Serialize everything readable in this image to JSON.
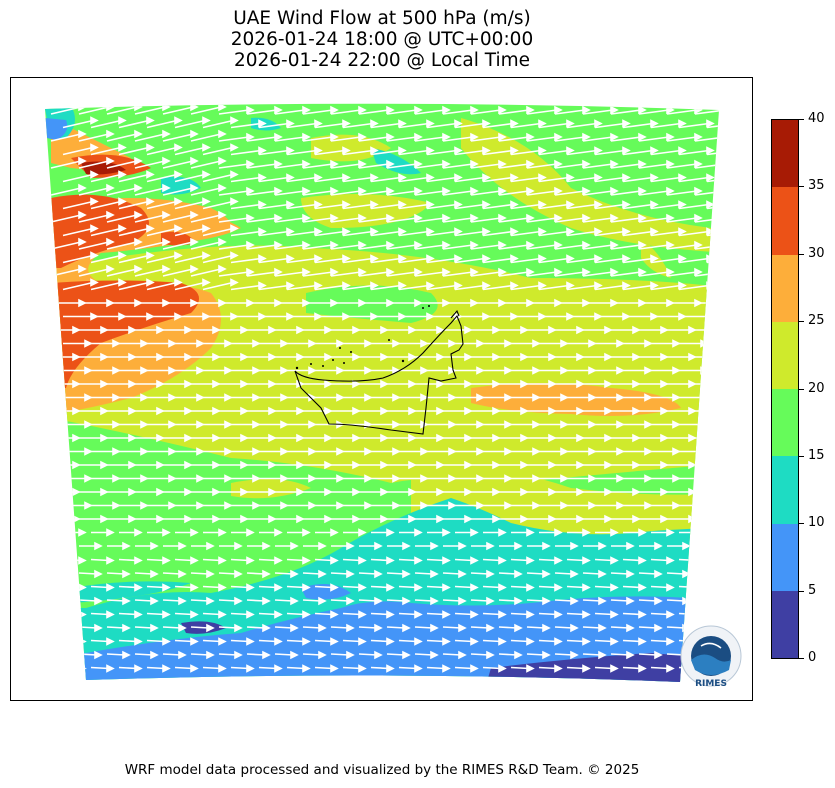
{
  "title": {
    "line1": "UAE Wind Flow at 500 hPa (m/s)",
    "line2": "2026-01-24 18:00 @ UTC+00:00",
    "line3": "2026-01-24 22:00 @ Local Time"
  },
  "colorbar": {
    "ticks": [
      "0",
      "5",
      "10",
      "15",
      "20",
      "25",
      "30",
      "35",
      "40"
    ],
    "levels": [
      {
        "min": 0,
        "max": 5,
        "color": "#3f3fa3"
      },
      {
        "min": 5,
        "max": 10,
        "color": "#4495f8"
      },
      {
        "min": 10,
        "max": 15,
        "color": "#1edcc3"
      },
      {
        "min": 15,
        "max": 20,
        "color": "#66fb5a"
      },
      {
        "min": 20,
        "max": 25,
        "color": "#cfea2c"
      },
      {
        "min": 25,
        "max": 30,
        "color": "#fdae3a"
      },
      {
        "min": 30,
        "max": 35,
        "color": "#ec5217"
      },
      {
        "min": 35,
        "max": 40,
        "color": "#a71b05"
      }
    ]
  },
  "map": {
    "region": "UAE",
    "wind_direction": "westerly (west to east)",
    "arrow_color": "#ffffff",
    "boundary_color": "#000000"
  },
  "logo": {
    "label": "RIMES",
    "ring_text": "Regional Integrated Multi-Hazard Early Warning System",
    "icon": "rimes-logo-icon"
  },
  "footer": {
    "credit": "WRF model data processed and visualized by the RIMES R&D Team. © 2025"
  }
}
